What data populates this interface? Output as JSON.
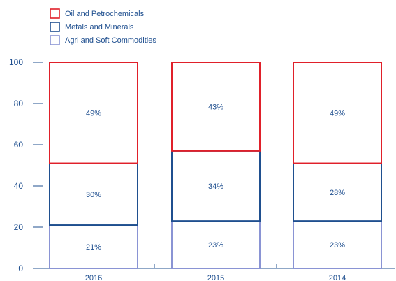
{
  "chart_data": {
    "type": "bar",
    "stacked": true,
    "categories": [
      "2016",
      "2015",
      "2014"
    ],
    "series": [
      {
        "name": "Agri and Soft Commodities",
        "values": [
          21,
          23,
          23
        ],
        "labels": [
          "21%",
          "23%",
          "23%"
        ],
        "color": "#8a94d4"
      },
      {
        "name": "Metals and Minerals",
        "values": [
          30,
          34,
          28
        ],
        "labels": [
          "30%",
          "34%",
          "28%"
        ],
        "color": "#1f4f8f"
      },
      {
        "name": "Oil and Petrochemicals",
        "values": [
          49,
          43,
          49
        ],
        "labels": [
          "49%",
          "43%",
          "49%"
        ],
        "color": "#e0202a"
      }
    ],
    "legend_order": [
      "Oil and Petrochemicals",
      "Metals and Minerals",
      "Agri and Soft Commodities"
    ],
    "ylim": [
      0,
      100
    ],
    "yticks": [
      0,
      20,
      40,
      60,
      80,
      100
    ],
    "grid": false,
    "legend_position": "top-left",
    "axis_color": "#1f4f8f"
  }
}
